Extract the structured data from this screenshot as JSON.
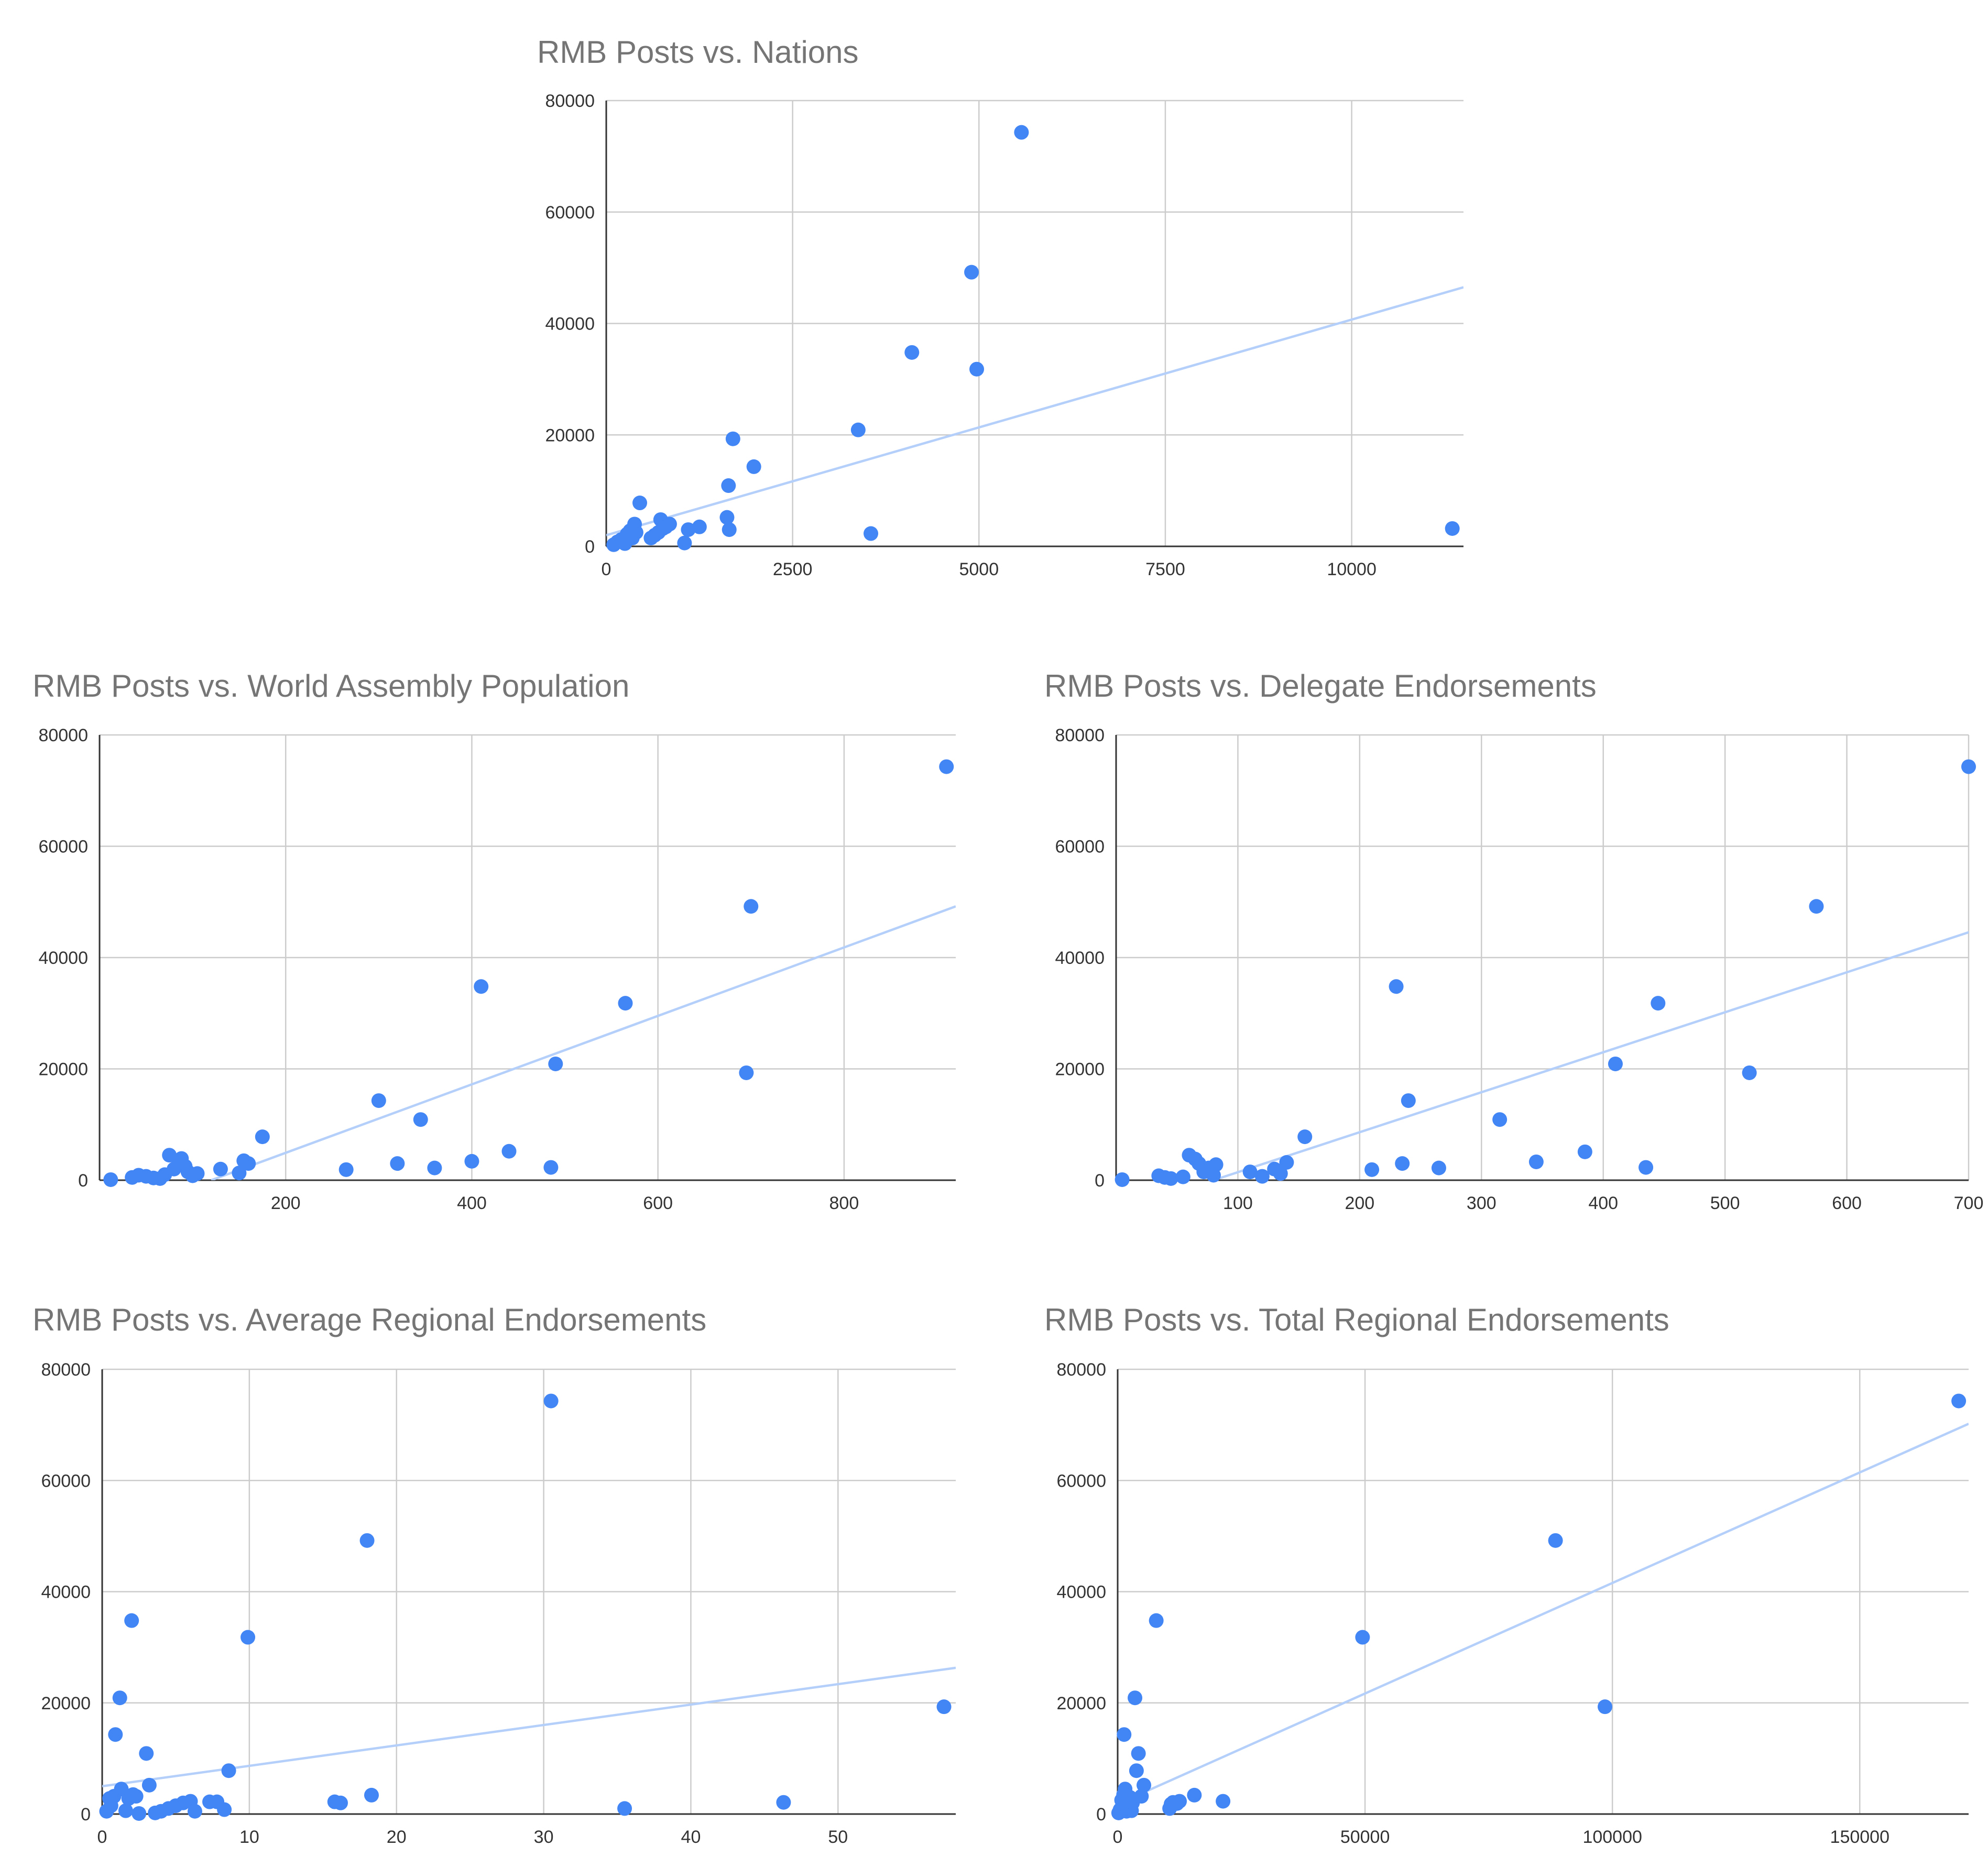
{
  "chart_data": [
    {
      "type": "scatter",
      "title": "RMB Posts vs. Nations",
      "xlabel": "",
      "ylabel": "",
      "xlim": [
        0,
        11500
      ],
      "ylim": [
        0,
        80000
      ],
      "xticks": [
        0,
        2500,
        5000,
        7500,
        10000
      ],
      "yticks": [
        0,
        20000,
        40000,
        60000,
        80000
      ],
      "grid": true,
      "marker_color": "#4285f4",
      "trendline": {
        "type": "linear",
        "color": "#b4cffa",
        "points": [
          [
            0,
            2000
          ],
          [
            11500,
            46500
          ]
        ]
      },
      "points": [
        [
          100,
          300
        ],
        [
          150,
          800
        ],
        [
          200,
          1200
        ],
        [
          250,
          500
        ],
        [
          280,
          2200
        ],
        [
          300,
          1800
        ],
        [
          320,
          2800
        ],
        [
          350,
          1500
        ],
        [
          380,
          4000
        ],
        [
          400,
          2500
        ],
        [
          450,
          7800
        ],
        [
          600,
          1500
        ],
        [
          650,
          2000
        ],
        [
          700,
          2500
        ],
        [
          730,
          4800
        ],
        [
          760,
          3200
        ],
        [
          800,
          3500
        ],
        [
          850,
          4000
        ],
        [
          1050,
          600
        ],
        [
          1100,
          3000
        ],
        [
          1250,
          3500
        ],
        [
          1620,
          5200
        ],
        [
          1640,
          10900
        ],
        [
          1650,
          3000
        ],
        [
          1700,
          19300
        ],
        [
          1980,
          14300
        ],
        [
          3380,
          20900
        ],
        [
          3550,
          2300
        ],
        [
          4100,
          34800
        ],
        [
          4900,
          49200
        ],
        [
          4970,
          31800
        ],
        [
          5570,
          74300
        ],
        [
          11350,
          3200
        ]
      ]
    },
    {
      "type": "scatter",
      "title": "RMB Posts vs. World Assembly Population",
      "xlabel": "",
      "ylabel": "",
      "xlim": [
        0,
        920
      ],
      "ylim": [
        0,
        80000
      ],
      "xticks": [
        200,
        400,
        600,
        800
      ],
      "yticks": [
        0,
        20000,
        40000,
        60000,
        80000
      ],
      "grid": true,
      "marker_color": "#4285f4",
      "trendline": {
        "type": "linear",
        "color": "#b4cffa",
        "points": [
          [
            120,
            0
          ],
          [
            920,
            49200
          ]
        ]
      },
      "points": [
        [
          12,
          100
        ],
        [
          35,
          500
        ],
        [
          42,
          900
        ],
        [
          50,
          700
        ],
        [
          58,
          400
        ],
        [
          65,
          300
        ],
        [
          70,
          1000
        ],
        [
          75,
          4500
        ],
        [
          80,
          2000
        ],
        [
          85,
          3500
        ],
        [
          88,
          3900
        ],
        [
          92,
          2500
        ],
        [
          95,
          1500
        ],
        [
          100,
          800
        ],
        [
          105,
          1200
        ],
        [
          130,
          2000
        ],
        [
          150,
          1300
        ],
        [
          155,
          3500
        ],
        [
          160,
          3000
        ],
        [
          175,
          7800
        ],
        [
          265,
          1900
        ],
        [
          300,
          14300
        ],
        [
          320,
          3000
        ],
        [
          345,
          10900
        ],
        [
          360,
          2200
        ],
        [
          400,
          3400
        ],
        [
          410,
          34800
        ],
        [
          440,
          5200
        ],
        [
          485,
          2300
        ],
        [
          490,
          20900
        ],
        [
          565,
          31800
        ],
        [
          695,
          19300
        ],
        [
          700,
          49200
        ],
        [
          910,
          74300
        ]
      ]
    },
    {
      "type": "scatter",
      "title": "RMB Posts vs. Delegate Endorsements",
      "xlabel": "",
      "ylabel": "",
      "xlim": [
        0,
        700
      ],
      "ylim": [
        0,
        80000
      ],
      "xticks": [
        100,
        200,
        300,
        400,
        500,
        600,
        700
      ],
      "yticks": [
        0,
        20000,
        40000,
        60000,
        80000
      ],
      "grid": true,
      "marker_color": "#4285f4",
      "trendline": {
        "type": "linear",
        "color": "#b4cffa",
        "points": [
          [
            80,
            0
          ],
          [
            705,
            44900
          ]
        ]
      },
      "points": [
        [
          5,
          100
        ],
        [
          35,
          800
        ],
        [
          40,
          500
        ],
        [
          45,
          300
        ],
        [
          55,
          600
        ],
        [
          60,
          4500
        ],
        [
          65,
          3800
        ],
        [
          68,
          3000
        ],
        [
          72,
          1500
        ],
        [
          76,
          2200
        ],
        [
          80,
          900
        ],
        [
          82,
          2800
        ],
        [
          110,
          1500
        ],
        [
          120,
          700
        ],
        [
          130,
          2000
        ],
        [
          135,
          1200
        ],
        [
          140,
          3200
        ],
        [
          155,
          7800
        ],
        [
          210,
          1900
        ],
        [
          230,
          34800
        ],
        [
          235,
          3000
        ],
        [
          240,
          14300
        ],
        [
          265,
          2200
        ],
        [
          315,
          10900
        ],
        [
          345,
          3300
        ],
        [
          385,
          5100
        ],
        [
          410,
          20900
        ],
        [
          435,
          2300
        ],
        [
          445,
          31800
        ],
        [
          520,
          19300
        ],
        [
          575,
          49200
        ],
        [
          700,
          74300
        ]
      ]
    },
    {
      "type": "scatter",
      "title": "RMB Posts vs. Average Regional Endorsements",
      "xlabel": "",
      "ylabel": "",
      "xlim": [
        0,
        58
      ],
      "ylim": [
        0,
        80000
      ],
      "xticks": [
        0,
        10,
        20,
        30,
        40,
        50
      ],
      "yticks": [
        0,
        20000,
        40000,
        60000,
        80000
      ],
      "grid": true,
      "marker_color": "#4285f4",
      "trendline": {
        "type": "linear",
        "color": "#b4cffa",
        "points": [
          [
            0,
            5000
          ],
          [
            58,
            26300
          ]
        ]
      },
      "points": [
        [
          0.3,
          500
        ],
        [
          0.5,
          2800
        ],
        [
          0.6,
          1500
        ],
        [
          0.8,
          3200
        ],
        [
          0.9,
          14300
        ],
        [
          1.2,
          20900
        ],
        [
          1.3,
          4500
        ],
        [
          1.6,
          600
        ],
        [
          1.8,
          2800
        ],
        [
          2,
          34800
        ],
        [
          2.1,
          3500
        ],
        [
          2.3,
          3200
        ],
        [
          2.5,
          100
        ],
        [
          3,
          10900
        ],
        [
          3.2,
          5200
        ],
        [
          3.6,
          200
        ],
        [
          4,
          500
        ],
        [
          4.5,
          1000
        ],
        [
          5,
          1500
        ],
        [
          5.5,
          2000
        ],
        [
          6,
          2300
        ],
        [
          6.3,
          500
        ],
        [
          7.3,
          2200
        ],
        [
          7.8,
          2200
        ],
        [
          8.3,
          800
        ],
        [
          8.6,
          7800
        ],
        [
          9.9,
          31800
        ],
        [
          15.8,
          2200
        ],
        [
          16.2,
          2000
        ],
        [
          18,
          49200
        ],
        [
          18.3,
          3400
        ],
        [
          30.5,
          74300
        ],
        [
          35.5,
          1000
        ],
        [
          46.3,
          2100
        ],
        [
          57.2,
          19300
        ]
      ]
    },
    {
      "type": "scatter",
      "title": "RMB Posts vs. Total Regional Endorsements",
      "xlabel": "",
      "ylabel": "",
      "xlim": [
        0,
        172000
      ],
      "ylim": [
        0,
        80000
      ],
      "xticks": [
        0,
        50000,
        100000,
        150000
      ],
      "yticks": [
        0,
        20000,
        40000,
        60000,
        80000
      ],
      "grid": true,
      "marker_color": "#4285f4",
      "trendline": {
        "type": "linear",
        "color": "#b4cffa",
        "points": [
          [
            -2000,
            1000
          ],
          [
            172000,
            70200
          ]
        ]
      },
      "points": [
        [
          200,
          200
        ],
        [
          500,
          800
        ],
        [
          800,
          2500
        ],
        [
          1000,
          1500
        ],
        [
          1200,
          3500
        ],
        [
          1300,
          14300
        ],
        [
          1500,
          4500
        ],
        [
          1800,
          500
        ],
        [
          2000,
          1200
        ],
        [
          2500,
          3000
        ],
        [
          2800,
          600
        ],
        [
          3000,
          2000
        ],
        [
          3500,
          20900
        ],
        [
          3800,
          7800
        ],
        [
          4200,
          10900
        ],
        [
          4800,
          3200
        ],
        [
          5300,
          5200
        ],
        [
          7800,
          34800
        ],
        [
          10500,
          1000
        ],
        [
          10800,
          1800
        ],
        [
          11200,
          2100
        ],
        [
          12000,
          1900
        ],
        [
          12500,
          2300
        ],
        [
          15500,
          3400
        ],
        [
          21300,
          2300
        ],
        [
          49500,
          31800
        ],
        [
          88500,
          49200
        ],
        [
          98500,
          19300
        ],
        [
          170000,
          74300
        ]
      ]
    }
  ]
}
